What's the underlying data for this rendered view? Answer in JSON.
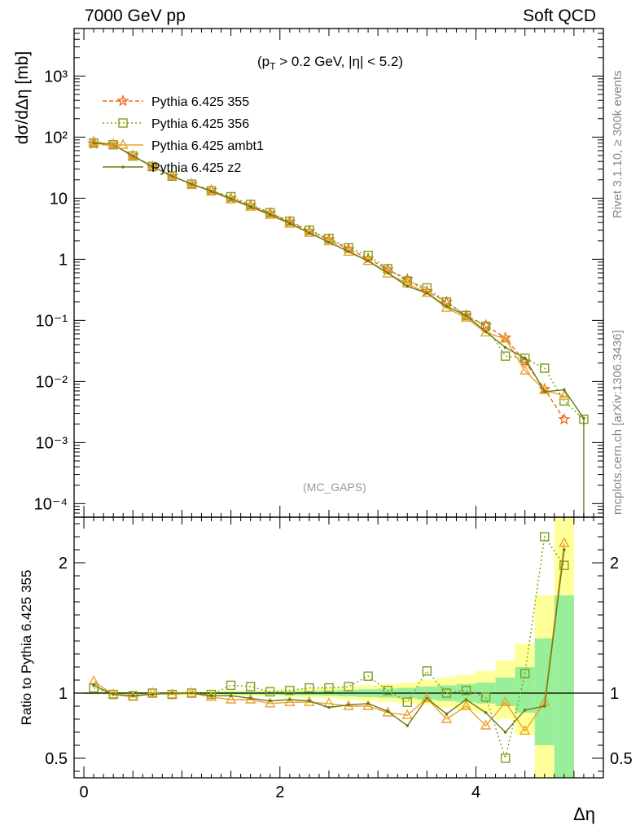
{
  "header": {
    "left": "7000 GeV pp",
    "right": "Soft QCD"
  },
  "side_texts": {
    "rivet": "Rivet 3.1.10, ≥ 300k events",
    "mcplots": "mcplots.cern.ch [arXiv:1306.3436]"
  },
  "watermark": "(MC_GAPS)",
  "cut_label": {
    "p": "(p",
    "sub": "T",
    "rest": " > 0.2 GeV, |η| < 5.2)"
  },
  "legend": [
    {
      "name": "Pythia 6.425 355"
    },
    {
      "name": "Pythia 6.425 356"
    },
    {
      "name": "Pythia 6.425 ambt1"
    },
    {
      "name": "Pythia 6.425 z2"
    }
  ],
  "colors": {
    "s355": "#ee6a14",
    "s356": "#7f9f1a",
    "ambt1": "#eaa22a",
    "z2": "#6b7a13",
    "band_yellow": "#ffff99",
    "band_green": "#99ee99"
  },
  "chart_data": [
    {
      "type": "line",
      "ylabel": "dσ/dΔη [mb]",
      "yscale": "log",
      "ylim": [
        6e-05,
        6000
      ],
      "xlim": [
        -0.1,
        5.3
      ],
      "y_tick_labels": [
        "10⁻⁴",
        "10⁻³",
        "10⁻²",
        "10⁻¹",
        "1",
        "10",
        "10²",
        "10³"
      ],
      "x": [
        0.1,
        0.3,
        0.5,
        0.7,
        0.9,
        1.1,
        1.3,
        1.5,
        1.7,
        1.9,
        2.1,
        2.3,
        2.5,
        2.7,
        2.9,
        3.1,
        3.3,
        3.5,
        3.7,
        3.9,
        4.1,
        4.3,
        4.5,
        4.7,
        4.9,
        5.1
      ],
      "series": [
        {
          "name": "Pythia 6.425 355",
          "values": [
            78,
            76,
            50,
            33,
            23,
            17,
            13.5,
            10,
            7.6,
            5.7,
            4.1,
            2.9,
            2.1,
            1.47,
            1.03,
            0.68,
            0.47,
            0.3,
            0.2,
            0.12,
            0.083,
            0.052,
            0.021,
            0.0075,
            0.0024,
            null
          ]
        },
        {
          "name": "Pythia 6.425 356",
          "values": [
            80,
            75,
            49,
            33,
            23,
            17,
            13.2,
            10.6,
            7.9,
            5.8,
            4.2,
            3.0,
            2.2,
            1.55,
            1.16,
            0.7,
            0.44,
            0.34,
            0.2,
            0.12,
            0.08,
            0.026,
            0.024,
            0.0165,
            0.0048,
            0.0024
          ]
        },
        {
          "name": "Pythia 6.425 ambt1",
          "values": [
            84,
            75,
            49,
            33,
            23,
            17,
            13,
            9.5,
            7.2,
            5.3,
            3.8,
            2.7,
            1.95,
            1.32,
            0.93,
            0.58,
            0.4,
            0.28,
            0.16,
            0.11,
            0.063,
            0.05,
            0.015,
            0.0072,
            0.0058,
            null
          ]
        },
        {
          "name": "Pythia 6.425 z2",
          "values": [
            80,
            75,
            49,
            33,
            23,
            17,
            13,
            9.8,
            7.3,
            5.4,
            3.9,
            2.7,
            1.9,
            1.34,
            0.94,
            0.6,
            0.36,
            0.28,
            0.17,
            0.12,
            0.065,
            0.036,
            0.024,
            0.0068,
            0.0073,
            0.0025
          ]
        }
      ]
    },
    {
      "type": "line",
      "xlabel": "Δη",
      "ylabel": "Ratio to Pythia 6.425 355",
      "ylim": [
        0.35,
        2.35
      ],
      "xlim": [
        -0.1,
        5.3
      ],
      "x_tick_labels": [
        "0",
        "2",
        "4"
      ],
      "y_tick_labels": [
        "0.5",
        "1",
        "2"
      ],
      "x": [
        0.1,
        0.3,
        0.5,
        0.7,
        0.9,
        1.1,
        1.3,
        1.5,
        1.7,
        1.9,
        2.1,
        2.3,
        2.5,
        2.7,
        2.9,
        3.1,
        3.3,
        3.5,
        3.7,
        3.9,
        4.1,
        4.3,
        4.5,
        4.7,
        4.9
      ],
      "series": [
        {
          "name": "Pythia 6.425 356",
          "values": [
            1.04,
            0.99,
            0.98,
            1.0,
            0.99,
            1.0,
            0.99,
            1.06,
            1.05,
            1.01,
            1.02,
            1.04,
            1.04,
            1.05,
            1.13,
            1.02,
            0.93,
            1.17,
            1.0,
            1.02,
            0.97,
            0.5,
            1.15,
            2.2,
            1.98
          ]
        },
        {
          "name": "Pythia 6.425 ambt1",
          "values": [
            1.09,
            0.99,
            0.97,
            1.0,
            0.99,
            1.0,
            0.97,
            0.95,
            0.95,
            0.92,
            0.93,
            0.93,
            0.92,
            0.9,
            0.9,
            0.85,
            0.83,
            0.96,
            0.8,
            0.9,
            0.75,
            0.93,
            0.71,
            0.93,
            2.15
          ]
        },
        {
          "name": "Pythia 6.425 z2",
          "values": [
            1.06,
            0.99,
            0.98,
            0.99,
            1.0,
            1.0,
            0.98,
            0.98,
            0.96,
            0.94,
            0.95,
            0.94,
            0.89,
            0.91,
            0.92,
            0.86,
            0.75,
            0.96,
            0.84,
            0.95,
            0.85,
            0.7,
            0.87,
            0.9,
            2.1
          ]
        }
      ],
      "band_yellow": [
        [
          0.0,
          0.99,
          1.01
        ],
        [
          0.2,
          0.99,
          1.01
        ],
        [
          0.4,
          0.99,
          1.01
        ],
        [
          0.6,
          0.99,
          1.01
        ],
        [
          0.8,
          0.99,
          1.01
        ],
        [
          1.0,
          0.985,
          1.015
        ],
        [
          1.2,
          0.985,
          1.015
        ],
        [
          1.4,
          0.98,
          1.02
        ],
        [
          1.6,
          0.98,
          1.02
        ],
        [
          1.8,
          0.975,
          1.025
        ],
        [
          2.0,
          0.97,
          1.03
        ],
        [
          2.2,
          0.965,
          1.035
        ],
        [
          2.4,
          0.96,
          1.04
        ],
        [
          2.6,
          0.95,
          1.05
        ],
        [
          2.8,
          0.94,
          1.06
        ],
        [
          3.0,
          0.93,
          1.07
        ],
        [
          3.2,
          0.92,
          1.08
        ],
        [
          3.4,
          0.91,
          1.1
        ],
        [
          3.6,
          0.89,
          1.12
        ],
        [
          3.8,
          0.87,
          1.14
        ],
        [
          4.0,
          0.85,
          1.17
        ],
        [
          4.2,
          0.8,
          1.25
        ],
        [
          4.4,
          0.68,
          1.38
        ],
        [
          4.6,
          0.35,
          1.75
        ],
        [
          4.8,
          0.35,
          2.35
        ]
      ],
      "band_green": [
        [
          0.0,
          0.995,
          1.005
        ],
        [
          0.2,
          0.995,
          1.005
        ],
        [
          0.4,
          0.995,
          1.005
        ],
        [
          0.6,
          0.995,
          1.005
        ],
        [
          0.8,
          0.995,
          1.005
        ],
        [
          1.0,
          0.993,
          1.007
        ],
        [
          1.2,
          0.993,
          1.007
        ],
        [
          1.4,
          0.99,
          1.01
        ],
        [
          1.6,
          0.99,
          1.01
        ],
        [
          1.8,
          0.988,
          1.012
        ],
        [
          2.0,
          0.985,
          1.015
        ],
        [
          2.2,
          0.983,
          1.017
        ],
        [
          2.4,
          0.98,
          1.02
        ],
        [
          2.6,
          0.975,
          1.025
        ],
        [
          2.8,
          0.97,
          1.03
        ],
        [
          3.0,
          0.965,
          1.035
        ],
        [
          3.2,
          0.96,
          1.04
        ],
        [
          3.4,
          0.95,
          1.05
        ],
        [
          3.6,
          0.94,
          1.06
        ],
        [
          3.8,
          0.93,
          1.07
        ],
        [
          4.0,
          0.92,
          1.08
        ],
        [
          4.2,
          0.9,
          1.12
        ],
        [
          4.4,
          0.85,
          1.2
        ],
        [
          4.6,
          0.6,
          1.42
        ],
        [
          4.8,
          0.35,
          1.75
        ]
      ]
    }
  ]
}
